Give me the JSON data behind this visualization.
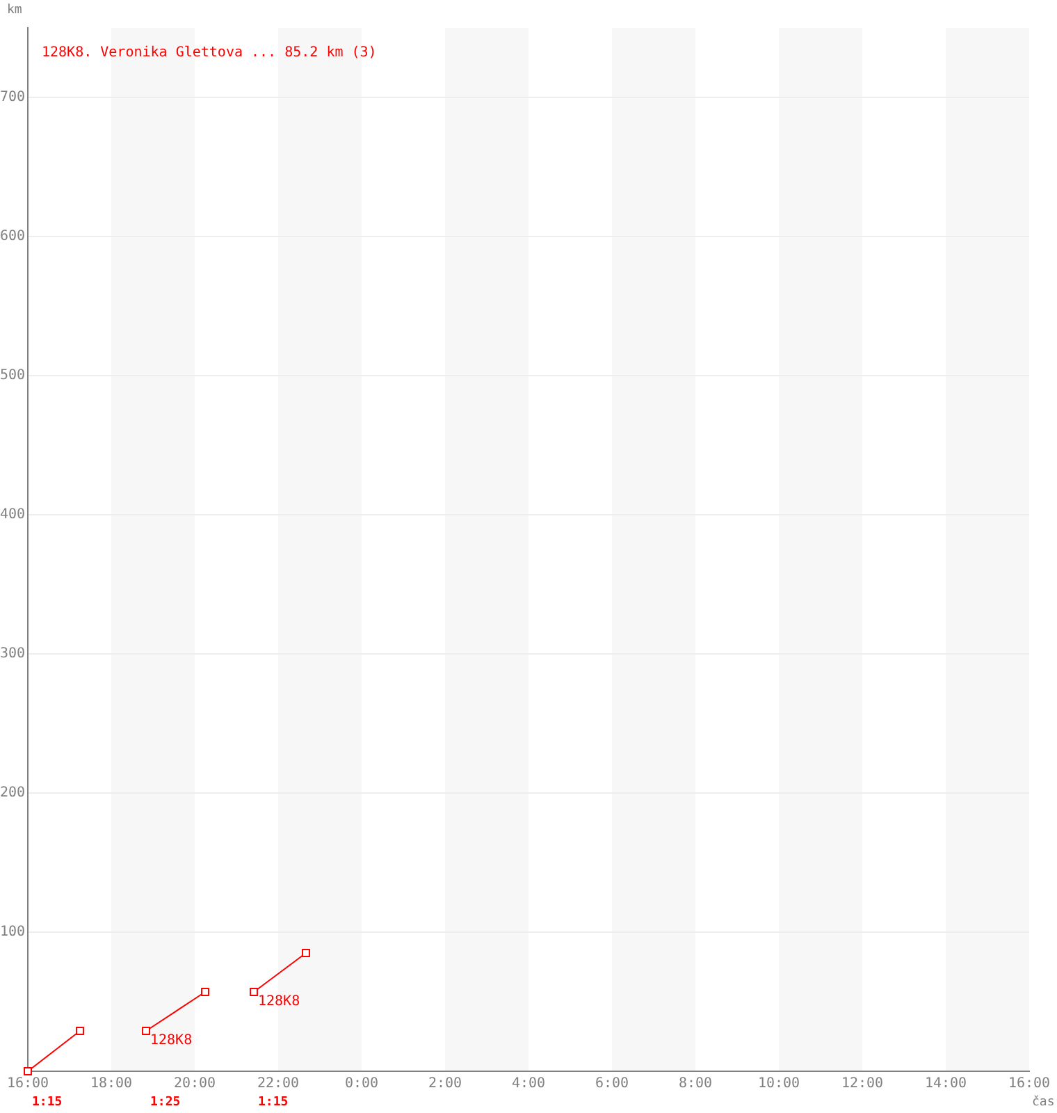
{
  "chart_data": {
    "type": "line",
    "title": "128K8. Veronika Glettova ... 85.2 km (3)",
    "xlabel": "čas",
    "ylabel": "km",
    "series": [
      {
        "color": "#ff0000",
        "x": [
          "2000-01-01T16:00",
          "2000-01-01T17:15"
        ],
        "values": [
          0,
          29
        ]
      },
      {
        "color": "#ff0000",
        "x": [
          "2000-01-01T18:50",
          "2000-01-01T20:15"
        ],
        "values": [
          29,
          57
        ]
      },
      {
        "color": "#ff0000",
        "x": [
          "2000-01-01T21:25",
          "2000-01-01T22:40"
        ],
        "values": [
          57,
          85
        ]
      }
    ],
    "xlim": [
      "2000-01-01T16:00",
      "2000-01-02T16:00"
    ],
    "xticks": [
      {
        "value": "2000-01-01T16:00",
        "label": "16:00"
      },
      {
        "value": "2000-01-01T18:00",
        "label": "18:00"
      },
      {
        "value": "2000-01-01T20:00",
        "label": "20:00"
      },
      {
        "value": "2000-01-01T22:00",
        "label": "22:00"
      },
      {
        "value": "2000-01-02T00:00",
        "label": "0:00"
      },
      {
        "value": "2000-01-02T02:00",
        "label": "2:00"
      },
      {
        "value": "2000-01-02T04:00",
        "label": "4:00"
      },
      {
        "value": "2000-01-02T06:00",
        "label": "6:00"
      },
      {
        "value": "2000-01-02T08:00",
        "label": "8:00"
      },
      {
        "value": "2000-01-02T10:00",
        "label": "10:00"
      },
      {
        "value": "2000-01-02T12:00",
        "label": "12:00"
      },
      {
        "value": "2000-01-02T14:00",
        "label": "14:00"
      },
      {
        "value": "2000-01-02T16:00",
        "label": "16:00"
      }
    ],
    "ylim": [
      0,
      750
    ],
    "yticks": [
      100,
      200,
      300,
      400,
      500,
      600,
      700
    ],
    "bands": [
      {
        "axis": "x",
        "from": "2000-01-01T18:00",
        "to": "2000-01-01T20:00",
        "color": "#f7f7f7"
      },
      {
        "axis": "x",
        "from": "2000-01-01T22:00",
        "to": "2000-01-02T00:00",
        "color": "#f7f7f7"
      },
      {
        "axis": "x",
        "from": "2000-01-02T02:00",
        "to": "2000-01-02T04:00",
        "color": "#f7f7f7"
      },
      {
        "axis": "x",
        "from": "2000-01-02T06:00",
        "to": "2000-01-02T08:00",
        "color": "#f7f7f7"
      },
      {
        "axis": "x",
        "from": "2000-01-02T10:00",
        "to": "2000-01-02T12:00",
        "color": "#f7f7f7"
      },
      {
        "axis": "x",
        "from": "2000-01-02T14:00",
        "to": "2000-01-02T16:00",
        "color": "#f7f7f7"
      }
    ],
    "annotations": [
      {
        "text": "128K8",
        "x": "2000-01-01T18:50",
        "y": 29
      },
      {
        "text": "128K8",
        "x": "2000-01-01T21:25",
        "y": 57
      },
      "1:15",
      "1:25",
      "1:15"
    ],
    "grid": "y",
    "marker": "square",
    "line_style": "solid"
  }
}
